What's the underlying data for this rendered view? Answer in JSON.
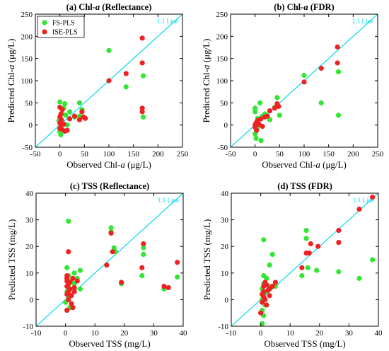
{
  "colors": {
    "fs": "#33e633",
    "ise": "#ee2222",
    "ref_line": "#00d8e8"
  },
  "legend": [
    {
      "name": "FS-PLS",
      "color": "#33e633"
    },
    {
      "name": "ISE-PLS",
      "color": "#ee2222"
    }
  ],
  "chart_data": [
    {
      "type": "scatter",
      "title_prefix": "(a) Chl-",
      "title_italic": "a",
      "title_suffix": " (Reflectance)",
      "xlabel_prefix": "Observed Chl-",
      "xlabel_italic": "a",
      "xlabel_suffix": " (μg/L)",
      "ylabel_prefix": "Predicted Chl-",
      "ylabel_italic": "a",
      "ylabel_suffix": " (μg/L)",
      "ref_label": "1:1 Line",
      "xlim": [
        -50,
        250
      ],
      "ylim": [
        -50,
        250
      ],
      "xticks": [
        -50,
        0,
        50,
        100,
        150,
        200,
        250
      ],
      "yticks": [
        -50,
        0,
        50,
        100,
        150,
        200,
        250
      ],
      "xtick_labels": [
        "-50",
        "0",
        "50",
        "100",
        "150",
        "200",
        "250"
      ],
      "ytick_labels": [
        "-50",
        "0",
        "50",
        "100",
        "150",
        "200",
        "250"
      ],
      "series": [
        {
          "name": "FS-PLS",
          "points": [
            [
              100,
              168
            ],
            [
              170,
              111
            ],
            [
              135,
              86
            ],
            [
              170,
              18
            ],
            [
              0,
              52
            ],
            [
              10,
              48
            ],
            [
              40,
              50
            ],
            [
              45,
              35
            ],
            [
              20,
              30
            ],
            [
              5,
              25
            ],
            [
              12,
              22
            ],
            [
              30,
              18
            ],
            [
              40,
              20
            ],
            [
              -2,
              10
            ],
            [
              0,
              -15
            ],
            [
              2,
              -22
            ],
            [
              0,
              -5
            ],
            [
              5,
              5
            ],
            [
              15,
              0
            ],
            [
              8,
              38
            ]
          ]
        },
        {
          "name": "ISE-PLS",
          "points": [
            [
              168,
              196
            ],
            [
              168,
              140
            ],
            [
              100,
              100
            ],
            [
              135,
              116
            ],
            [
              168,
              38
            ],
            [
              168,
              30
            ],
            [
              0,
              40
            ],
            [
              5,
              35
            ],
            [
              2,
              25
            ],
            [
              0,
              18
            ],
            [
              3,
              12
            ],
            [
              0,
              5
            ],
            [
              2,
              0
            ],
            [
              0,
              -8
            ],
            [
              5,
              -10
            ],
            [
              10,
              -14
            ],
            [
              15,
              -12
            ],
            [
              20,
              14
            ],
            [
              30,
              20
            ],
            [
              45,
              30
            ],
            [
              48,
              18
            ],
            [
              52,
              15
            ],
            [
              40,
              12
            ],
            [
              8,
              2
            ]
          ]
        }
      ]
    },
    {
      "type": "scatter",
      "title_prefix": "(b) Chl-",
      "title_italic": "a",
      "title_suffix": " (FDR)",
      "xlabel_prefix": "Observed Chl-",
      "xlabel_italic": "a",
      "xlabel_suffix": " (μg/L)",
      "ylabel_prefix": "Predicted Chl-",
      "ylabel_italic": "a",
      "ylabel_suffix": " (μg/L)",
      "ref_label": "1:1 Line",
      "xlim": [
        -50,
        250
      ],
      "ylim": [
        -50,
        250
      ],
      "xticks": [
        -50,
        0,
        50,
        100,
        150,
        200,
        250
      ],
      "yticks": [
        -50,
        0,
        50,
        100,
        150,
        200,
        250
      ],
      "xtick_labels": [
        "-50",
        "0",
        "50",
        "100",
        "150",
        "200",
        "250"
      ],
      "ytick_labels": [
        "-50",
        "0",
        "50",
        "100",
        "150",
        "200",
        "250"
      ],
      "series": [
        {
          "name": "FS-PLS",
          "points": [
            [
              100,
              112
            ],
            [
              170,
              120
            ],
            [
              135,
              50
            ],
            [
              170,
              22
            ],
            [
              0,
              30
            ],
            [
              0,
              38
            ],
            [
              10,
              50
            ],
            [
              45,
              62
            ],
            [
              40,
              40
            ],
            [
              20,
              25
            ],
            [
              5,
              15
            ],
            [
              2,
              -30
            ],
            [
              12,
              -35
            ],
            [
              30,
              12
            ],
            [
              50,
              22
            ],
            [
              15,
              20
            ],
            [
              0,
              0
            ],
            [
              5,
              -5
            ],
            [
              0,
              -20
            ]
          ]
        },
        {
          "name": "ISE-PLS",
          "points": [
            [
              168,
              176
            ],
            [
              168,
              140
            ],
            [
              135,
              128
            ],
            [
              100,
              97
            ],
            [
              45,
              48
            ],
            [
              48,
              42
            ],
            [
              40,
              38
            ],
            [
              30,
              32
            ],
            [
              20,
              18
            ],
            [
              12,
              14
            ],
            [
              5,
              10
            ],
            [
              2,
              5
            ],
            [
              0,
              0
            ],
            [
              0,
              -5
            ],
            [
              3,
              -12
            ],
            [
              8,
              2
            ],
            [
              15,
              -3
            ],
            [
              25,
              20
            ]
          ]
        }
      ]
    },
    {
      "type": "scatter",
      "title_prefix": "(c) TSS (Reflectance)",
      "title_italic": "",
      "title_suffix": "",
      "xlabel_prefix": "Observed TSS (mg/L)",
      "xlabel_italic": "",
      "xlabel_suffix": "",
      "ylabel_prefix": "Predicted TSS (mg/L)",
      "ylabel_italic": "",
      "ylabel_suffix": "",
      "ref_label": "1:1 Line",
      "xlim": [
        -10,
        40
      ],
      "ylim": [
        -10,
        40
      ],
      "xticks": [
        -10,
        0,
        10,
        20,
        30,
        40
      ],
      "yticks": [
        -10,
        0,
        10,
        20,
        30,
        40
      ],
      "xtick_labels": [
        "-10",
        "0",
        "10",
        "20",
        "30",
        "40"
      ],
      "ytick_labels": [
        "-10",
        "0",
        "10",
        "20",
        "30",
        "40"
      ],
      "series": [
        {
          "name": "FS-PLS",
          "points": [
            [
              1,
              29.5
            ],
            [
              15.5,
              27
            ],
            [
              15.5,
              25.5
            ],
            [
              16.5,
              19.5
            ],
            [
              26.5,
              19.5
            ],
            [
              26.5,
              17
            ],
            [
              17,
              18
            ],
            [
              14,
              13
            ],
            [
              19,
              6
            ],
            [
              26,
              9
            ],
            [
              33.5,
              4
            ],
            [
              38,
              8.5
            ],
            [
              5,
              11
            ],
            [
              3,
              10
            ],
            [
              4,
              8
            ],
            [
              2,
              7
            ],
            [
              1,
              5
            ],
            [
              0.5,
              3
            ],
            [
              1,
              1
            ],
            [
              0,
              -1
            ],
            [
              1.5,
              -3
            ],
            [
              0.5,
              -4
            ],
            [
              2,
              -2
            ],
            [
              5,
              4
            ],
            [
              3,
              6
            ],
            [
              1,
              9
            ],
            [
              0.5,
              12
            ]
          ]
        },
        {
          "name": "ISE-PLS",
          "points": [
            [
              1,
              18
            ],
            [
              15.5,
              25
            ],
            [
              16,
              18
            ],
            [
              14,
              13
            ],
            [
              26.5,
              21
            ],
            [
              26,
              12
            ],
            [
              19,
              6.5
            ],
            [
              33.5,
              5
            ],
            [
              35,
              4.5
            ],
            [
              38,
              14
            ],
            [
              0.5,
              9
            ],
            [
              0.5,
              7
            ],
            [
              1,
              6
            ],
            [
              0.5,
              5
            ],
            [
              1.5,
              4
            ],
            [
              0.5,
              2
            ],
            [
              1,
              0
            ],
            [
              2,
              -1.5
            ],
            [
              2.5,
              -3
            ],
            [
              0.5,
              -4
            ],
            [
              3,
              3
            ],
            [
              4,
              7
            ],
            [
              2.5,
              8
            ],
            [
              1.5,
              6.5
            ],
            [
              3,
              4.5
            ],
            [
              2,
              1.5
            ],
            [
              0.5,
              8
            ],
            [
              1,
              3
            ]
          ]
        }
      ]
    },
    {
      "type": "scatter",
      "title_prefix": "(d) TSS (FDR)",
      "title_italic": "",
      "title_suffix": "",
      "xlabel_prefix": "Observed TSS (mg/L)",
      "xlabel_italic": "",
      "xlabel_suffix": "",
      "ylabel_prefix": "Predicted TSS (mg/L)",
      "ylabel_italic": "",
      "ylabel_suffix": "",
      "ref_label": "1:1 Line",
      "xlim": [
        -10,
        40
      ],
      "ylim": [
        -10,
        40
      ],
      "xticks": [
        -10,
        0,
        10,
        20,
        30,
        40
      ],
      "yticks": [
        -10,
        0,
        10,
        20,
        30,
        40
      ],
      "xtick_labels": [
        "-10",
        "0",
        "10",
        "20",
        "30",
        "40"
      ],
      "ytick_labels": [
        "-10",
        "0",
        "10",
        "20",
        "30",
        "40"
      ],
      "series": [
        {
          "name": "FS-PLS",
          "points": [
            [
              1,
              22.5
            ],
            [
              15.5,
              26
            ],
            [
              15.5,
              23
            ],
            [
              4,
              17
            ],
            [
              26.5,
              10.5
            ],
            [
              33.5,
              8
            ],
            [
              38,
              15
            ],
            [
              19,
              11
            ],
            [
              16,
              12
            ],
            [
              14,
              9
            ],
            [
              5,
              5
            ],
            [
              3,
              13
            ],
            [
              2,
              8
            ],
            [
              1,
              6
            ],
            [
              0.5,
              4
            ],
            [
              1,
              2
            ],
            [
              0.5,
              0
            ],
            [
              1.5,
              -2
            ],
            [
              0.5,
              -4
            ],
            [
              1,
              -6
            ],
            [
              0.5,
              -9
            ],
            [
              2,
              3
            ],
            [
              3,
              5
            ],
            [
              1,
              9
            ]
          ]
        },
        {
          "name": "ISE-PLS",
          "points": [
            [
              38,
              38.5
            ],
            [
              33.5,
              34
            ],
            [
              26.5,
              26
            ],
            [
              26.5,
              21.5
            ],
            [
              19.5,
              20
            ],
            [
              15.5,
              17.5
            ],
            [
              16.5,
              17.5
            ],
            [
              14,
              12
            ],
            [
              17,
              21
            ],
            [
              5,
              6.5
            ],
            [
              4,
              5
            ],
            [
              3,
              4
            ],
            [
              2,
              5.5
            ],
            [
              1,
              3
            ],
            [
              0.5,
              2
            ],
            [
              1,
              1
            ],
            [
              1.5,
              0
            ],
            [
              0.5,
              -1
            ],
            [
              2,
              -2
            ],
            [
              0,
              -5
            ],
            [
              1,
              5
            ],
            [
              2.5,
              3.5
            ],
            [
              1.5,
              6.5
            ],
            [
              3,
              1.5
            ]
          ]
        }
      ]
    }
  ]
}
